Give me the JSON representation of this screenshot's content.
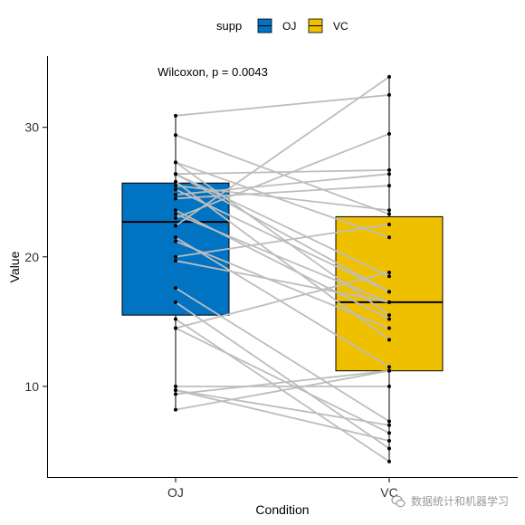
{
  "chart_data": {
    "type": "boxplot-paired",
    "xlabel": "Condition",
    "ylabel": "Value",
    "annotation": "Wilcoxon, p = 0.0043",
    "legend": {
      "title": "supp",
      "entries": [
        {
          "name": "OJ",
          "color": "#0073C2"
        },
        {
          "name": "VC",
          "color": "#EFC000"
        }
      ],
      "placement": "top"
    },
    "categories": [
      "OJ",
      "VC"
    ],
    "ylim": [
      3,
      35.5
    ],
    "yticks": [
      10,
      20,
      30
    ],
    "grid": false,
    "boxes": [
      {
        "name": "OJ",
        "q1": 15.5,
        "median": 22.7,
        "q3": 25.7,
        "min": 8.2,
        "max": 30.9,
        "color": "#0073C2"
      },
      {
        "name": "VC",
        "q1": 11.2,
        "median": 16.5,
        "q3": 23.1,
        "min": 4.2,
        "max": 33.9,
        "color": "#EFC000"
      }
    ],
    "pairs": [
      {
        "oj": 15.2,
        "vc": 4.2
      },
      {
        "oj": 21.5,
        "vc": 11.5
      },
      {
        "oj": 17.6,
        "vc": 7.3
      },
      {
        "oj": 9.7,
        "vc": 5.8
      },
      {
        "oj": 14.5,
        "vc": 6.4
      },
      {
        "oj": 10.0,
        "vc": 10.0
      },
      {
        "oj": 8.2,
        "vc": 11.2
      },
      {
        "oj": 9.4,
        "vc": 11.2
      },
      {
        "oj": 16.5,
        "vc": 5.2
      },
      {
        "oj": 9.7,
        "vc": 7.0
      },
      {
        "oj": 19.7,
        "vc": 16.5
      },
      {
        "oj": 23.3,
        "vc": 16.5
      },
      {
        "oj": 23.6,
        "vc": 15.2
      },
      {
        "oj": 26.4,
        "vc": 17.3
      },
      {
        "oj": 20.0,
        "vc": 22.5
      },
      {
        "oj": 25.2,
        "vc": 17.3
      },
      {
        "oj": 25.8,
        "vc": 13.6
      },
      {
        "oj": 21.2,
        "vc": 14.5
      },
      {
        "oj": 14.5,
        "vc": 18.8
      },
      {
        "oj": 27.3,
        "vc": 15.5
      },
      {
        "oj": 25.5,
        "vc": 23.6
      },
      {
        "oj": 26.4,
        "vc": 18.5
      },
      {
        "oj": 22.4,
        "vc": 33.9
      },
      {
        "oj": 24.5,
        "vc": 25.5
      },
      {
        "oj": 24.8,
        "vc": 26.4
      },
      {
        "oj": 30.9,
        "vc": 32.5
      },
      {
        "oj": 26.4,
        "vc": 26.7
      },
      {
        "oj": 27.3,
        "vc": 21.5
      },
      {
        "oj": 29.4,
        "vc": 23.3
      },
      {
        "oj": 23.0,
        "vc": 29.5
      }
    ]
  },
  "watermark": {
    "text": "数据统计和机器学习",
    "icon": "wechat-icon"
  }
}
